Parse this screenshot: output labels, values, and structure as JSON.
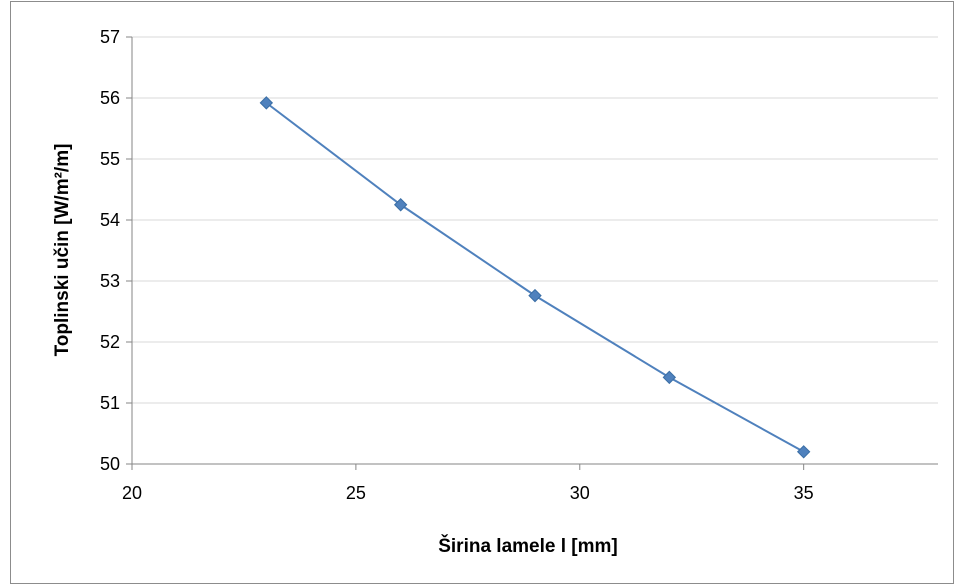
{
  "chart_data": {
    "type": "line",
    "title": "",
    "xlabel": "Širina lamele   l  [mm]",
    "ylabel": "Toplinski učin  [W/m²/m]",
    "xlim": [
      20,
      38
    ],
    "ylim": [
      50,
      57
    ],
    "xticks": [
      20,
      25,
      30,
      35
    ],
    "yticks": [
      50,
      51,
      52,
      53,
      54,
      55,
      56,
      57
    ],
    "grid": "horizontal",
    "legend": "none",
    "series": [
      {
        "x": [
          23,
          26,
          29,
          32,
          35
        ],
        "y": [
          55.92,
          54.25,
          52.76,
          51.42,
          50.2
        ],
        "color": "#4f81bd",
        "marker": "diamond"
      }
    ]
  }
}
